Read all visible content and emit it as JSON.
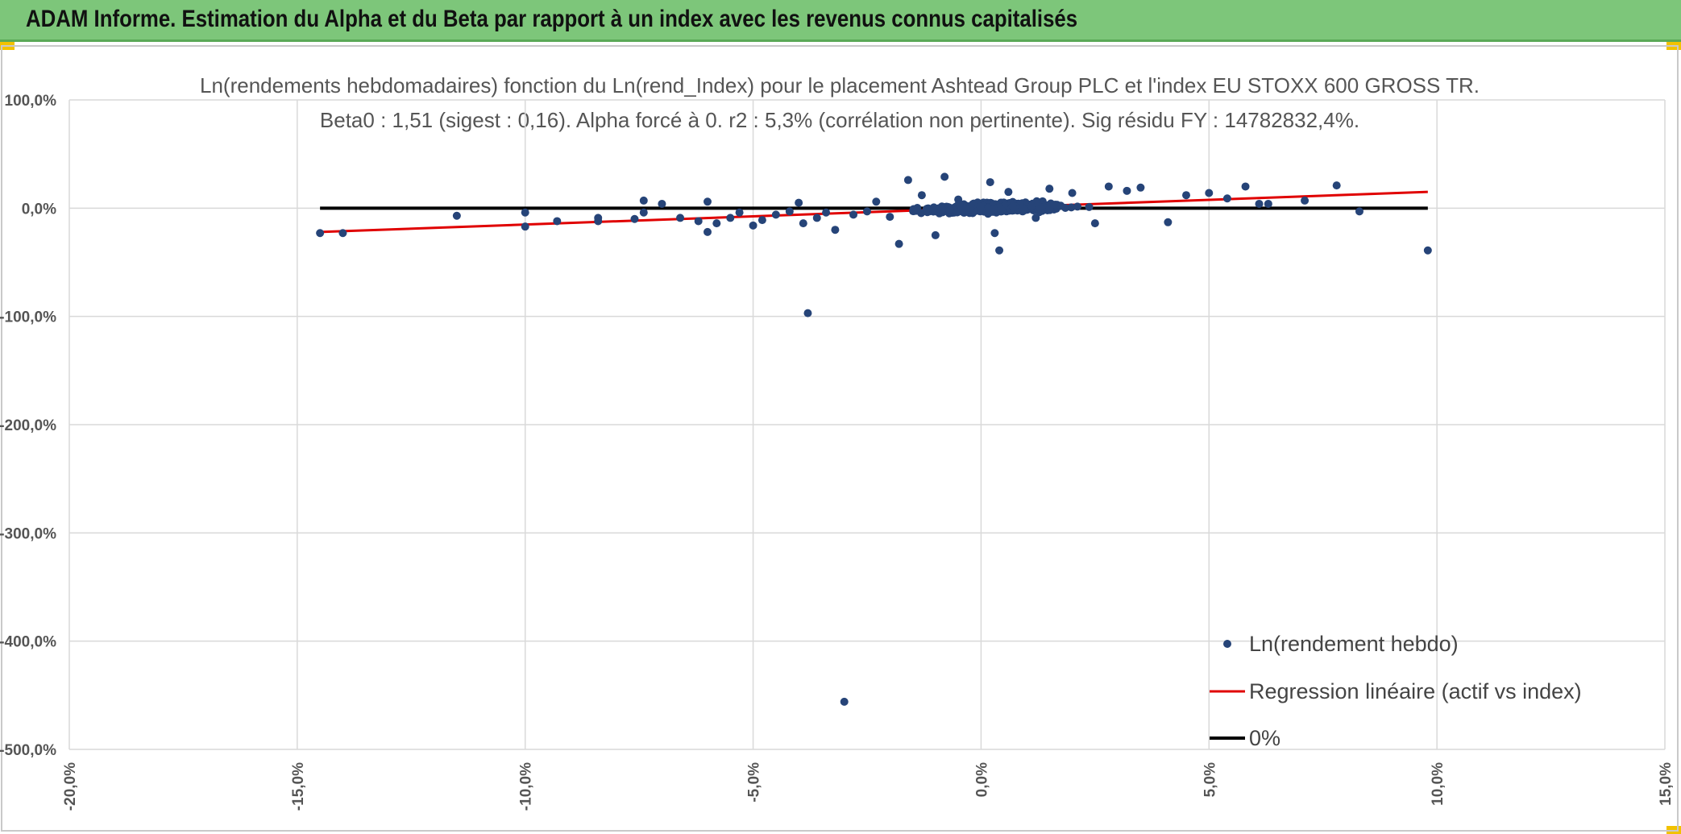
{
  "header": {
    "title": "ADAM Informe. Estimation du Alpha et du Beta par rapport à un index avec les revenus connus capitalisés"
  },
  "colors": {
    "banner": "#7dc67a",
    "points": "#264478",
    "regression": "#e00000",
    "zero_line": "#000000"
  },
  "chart_data": {
    "type": "scatter",
    "title": "Ln(rendements hebdomadaires) fonction du Ln(rend_Index) pour le placement Ashtead Group PLC et l'index EU STOXX 600 GROSS TR.",
    "subtitle": "Beta0 : 1,51 (sigest : 0,16). Alpha forcé à 0. r2 : 5,3% (corrélation non pertinente). Sig résidu FY : 14782832,4%.",
    "xlim": [
      -20,
      15
    ],
    "ylim": [
      -500,
      100
    ],
    "x_ticks": [
      "-20,0%",
      "-15,0%",
      "-10,0%",
      "-5,0%",
      "0,0%",
      "5,0%",
      "10,0%",
      "15,0%"
    ],
    "y_ticks": [
      "100,0%",
      "0,0%",
      "-100,0%",
      "-200,0%",
      "-300,0%",
      "-400,0%",
      "-500,0%"
    ],
    "grid": true,
    "legend_position": "bottom-right",
    "series": [
      {
        "name": "Ln(rendement hebdo)",
        "kind": "scatter",
        "points": [
          [
            -14.5,
            -23
          ],
          [
            -14,
            -23
          ],
          [
            -11.5,
            -7
          ],
          [
            -10,
            -4
          ],
          [
            -10,
            -17
          ],
          [
            -9.3,
            -12
          ],
          [
            -8.4,
            -9
          ],
          [
            -8.4,
            -12
          ],
          [
            -7.6,
            -10
          ],
          [
            -7.4,
            7
          ],
          [
            -7.4,
            -4
          ],
          [
            -7,
            4
          ],
          [
            -6.6,
            -9
          ],
          [
            -6.2,
            -12
          ],
          [
            -6,
            6
          ],
          [
            -6,
            -22
          ],
          [
            -5.8,
            -14
          ],
          [
            -5.5,
            -9
          ],
          [
            -5.3,
            -4
          ],
          [
            -5,
            -16
          ],
          [
            -4.8,
            -11
          ],
          [
            -4.5,
            -6
          ],
          [
            -4.2,
            -3
          ],
          [
            -3.9,
            -14
          ],
          [
            -4,
            5
          ],
          [
            -3.8,
            -97
          ],
          [
            -3.6,
            -9
          ],
          [
            -3.4,
            -4
          ],
          [
            -3.2,
            -20
          ],
          [
            -3.0,
            -456
          ],
          [
            -2.8,
            -6
          ],
          [
            -2.5,
            -3
          ],
          [
            -2.3,
            6
          ],
          [
            -2.0,
            -8
          ],
          [
            -1.8,
            -33
          ],
          [
            -1.6,
            26
          ],
          [
            -1.3,
            12
          ],
          [
            -1.0,
            -25
          ],
          [
            -0.8,
            29
          ],
          [
            -0.5,
            8
          ],
          [
            0.2,
            24
          ],
          [
            0.3,
            -23
          ],
          [
            0.4,
            -39
          ],
          [
            0.6,
            15
          ],
          [
            1.2,
            -9
          ],
          [
            1.5,
            18
          ],
          [
            2.0,
            14
          ],
          [
            2.5,
            -14
          ],
          [
            2.8,
            20
          ],
          [
            3.2,
            16
          ],
          [
            3.5,
            19
          ],
          [
            4.1,
            -13
          ],
          [
            4.5,
            12
          ],
          [
            5.0,
            14
          ],
          [
            5.4,
            9
          ],
          [
            5.8,
            20
          ],
          [
            6.1,
            4
          ],
          [
            6.3,
            4
          ],
          [
            7.1,
            7
          ],
          [
            7.8,
            21
          ],
          [
            8.3,
            -3
          ],
          [
            9.8,
            -39
          ]
        ]
      },
      {
        "name": "Regression linéaire (actif vs index)",
        "kind": "line",
        "points": [
          [
            -14.5,
            -22
          ],
          [
            9.8,
            15
          ]
        ]
      },
      {
        "name": "0%",
        "kind": "line",
        "points": [
          [
            -14.5,
            0
          ],
          [
            9.8,
            0
          ]
        ]
      }
    ]
  }
}
